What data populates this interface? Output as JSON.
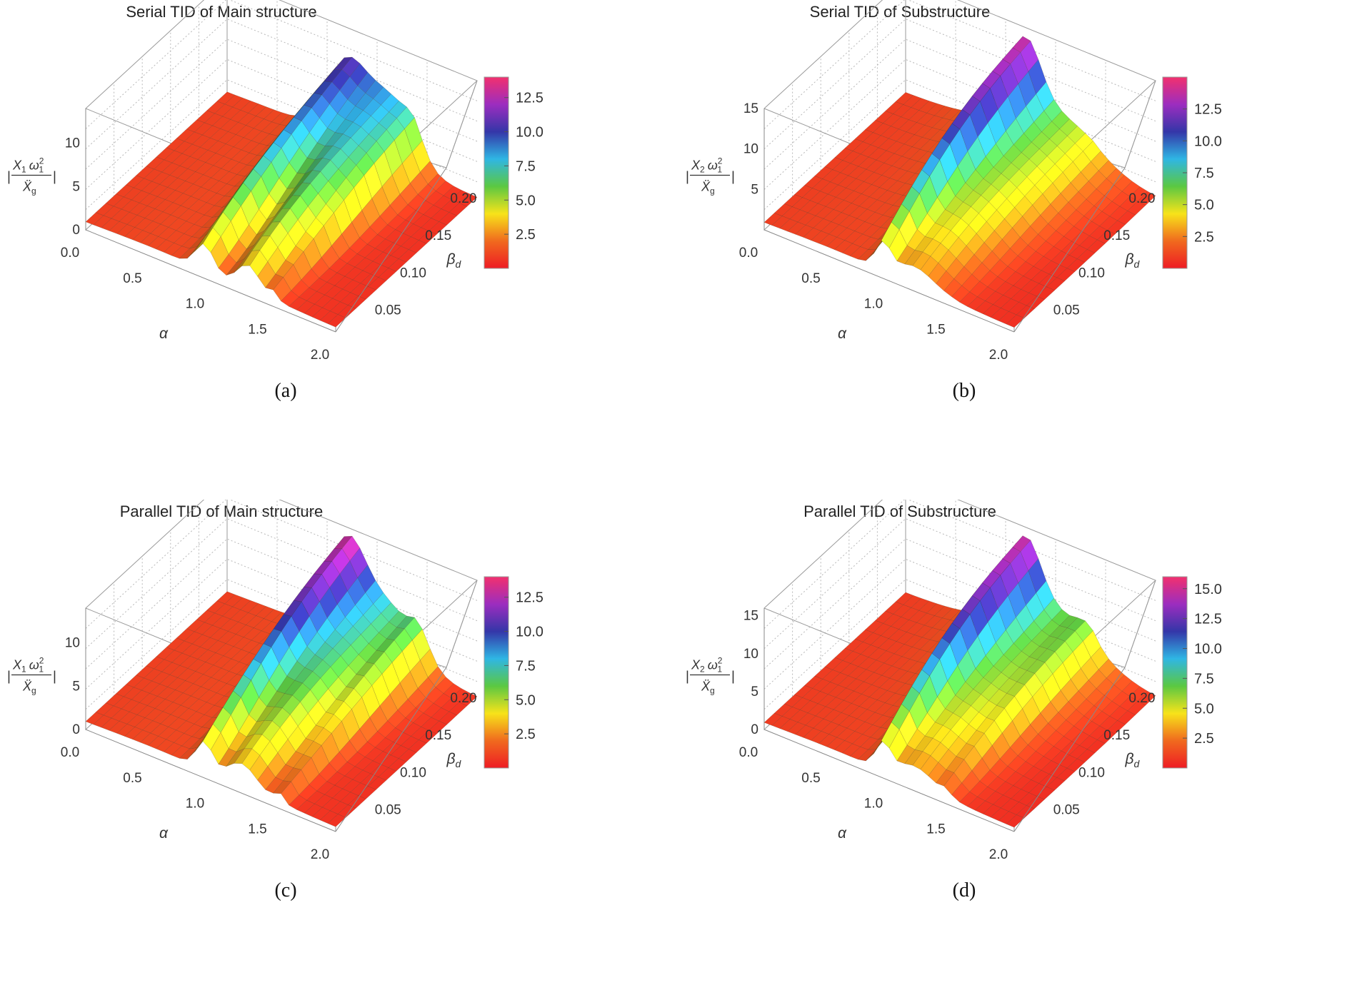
{
  "chart_data": [
    {
      "type": "surface",
      "title": "Serial TID of Main structure",
      "caption": "(a)",
      "xlabel": "α",
      "ylabel": "β",
      "ylabel_sub": "d",
      "zlabel": {
        "num_var": "X",
        "num_var_sub": "1",
        "omega": "ω",
        "omega_sub": "1",
        "omega_sup": "2",
        "den_var": "Ẍ",
        "den_var_sub": "g"
      },
      "x_ticks": [
        "0.0",
        "0.5",
        "1.0",
        "1.5",
        "2.0"
      ],
      "y_ticks": [
        "0.05",
        "0.10",
        "0.15",
        "0.20"
      ],
      "z_ticks": [
        "0",
        "5",
        "10"
      ],
      "xlim": [
        0,
        2.0
      ],
      "ylim": [
        0,
        0.22
      ],
      "zlim": [
        0,
        14
      ],
      "legend_ticks": [
        "2.5",
        "5.0",
        "7.5",
        "10.0",
        "12.5"
      ],
      "legend_range": [
        0,
        14
      ],
      "colorscale": [
        "#ee1c24",
        "#f06a1e",
        "#f7e31a",
        "#5bc842",
        "#2fb6e4",
        "#3436a8",
        "#9c2dbf",
        "#f2306e"
      ],
      "peaks": [
        {
          "alpha": 0.95,
          "z": 7.5,
          "width": 0.1,
          "trend": 0.6
        },
        {
          "alpha": 1.3,
          "z": 6.5,
          "width": 0.12,
          "trend": 0.3
        },
        {
          "alpha": 1.5,
          "z": 2.0,
          "width": 0.05,
          "trend": 0.1
        }
      ],
      "base": 1.0
    },
    {
      "type": "surface",
      "title": "Serial TID of Substructure",
      "caption": "(b)",
      "xlabel": "α",
      "ylabel": "β",
      "ylabel_sub": "d",
      "zlabel": {
        "num_var": "X",
        "num_var_sub": "2",
        "omega": "ω",
        "omega_sub": "1",
        "omega_sup": "2",
        "den_var": "Ẍ",
        "den_var_sub": "g"
      },
      "x_ticks": [
        "0.0",
        "0.5",
        "1.0",
        "1.5",
        "2.0"
      ],
      "y_ticks": [
        "0.05",
        "0.10",
        "0.15",
        "0.20"
      ],
      "z_ticks": [
        "5",
        "10",
        "15"
      ],
      "xlim": [
        0,
        2.0
      ],
      "ylim": [
        0,
        0.22
      ],
      "zlim": [
        0,
        15
      ],
      "legend_ticks": [
        "2.5",
        "5.0",
        "7.5",
        "10.0",
        "12.5"
      ],
      "legend_range": [
        0,
        15
      ],
      "colorscale": [
        "#ee1c24",
        "#f06a1e",
        "#f7e31a",
        "#5bc842",
        "#2fb6e4",
        "#3436a8",
        "#9c2dbf",
        "#f2306e"
      ],
      "peaks": [
        {
          "alpha": 0.95,
          "z": 8.0,
          "width": 0.08,
          "trend": 0.6
        },
        {
          "alpha": 1.2,
          "z": 5.0,
          "width": 0.22,
          "trend": 0.2
        }
      ],
      "base": 1.0
    },
    {
      "type": "surface",
      "title": "Parallel TID of Main structure",
      "caption": "(c)",
      "xlabel": "α",
      "ylabel": "β",
      "ylabel_sub": "d",
      "zlabel": {
        "num_var": "X",
        "num_var_sub": "1",
        "omega": "ω",
        "omega_sub": "1",
        "omega_sup": "2",
        "den_var": "Ẍ",
        "den_var_sub": "g"
      },
      "x_ticks": [
        "0.0",
        "0.5",
        "1.0",
        "1.5",
        "2.0"
      ],
      "y_ticks": [
        "0.05",
        "0.10",
        "0.15",
        "0.20"
      ],
      "z_ticks": [
        "0",
        "5",
        "10"
      ],
      "xlim": [
        0,
        2.0
      ],
      "ylim": [
        0,
        0.22
      ],
      "zlim": [
        0,
        14
      ],
      "legend_ticks": [
        "2.5",
        "5.0",
        "7.5",
        "10.0",
        "12.5"
      ],
      "legend_range": [
        0,
        14
      ],
      "colorscale": [
        "#ee1c24",
        "#f06a1e",
        "#f7e31a",
        "#5bc842",
        "#2fb6e4",
        "#3436a8",
        "#9c2dbf",
        "#f2306e"
      ],
      "peaks": [
        {
          "alpha": 0.95,
          "z": 8.0,
          "width": 0.09,
          "trend": 0.6
        },
        {
          "alpha": 1.25,
          "z": 6.0,
          "width": 0.16,
          "trend": 0.3
        },
        {
          "alpha": 1.55,
          "z": 2.5,
          "width": 0.05,
          "trend": 0.1
        }
      ],
      "base": 1.0
    },
    {
      "type": "surface",
      "title": "Parallel TID of Substructure",
      "caption": "(d)",
      "xlabel": "α",
      "ylabel": "β",
      "ylabel_sub": "d",
      "zlabel": {
        "num_var": "X",
        "num_var_sub": "2",
        "omega": "ω",
        "omega_sub": "1",
        "omega_sup": "2",
        "den_var": "Ẍ",
        "den_var_sub": "g"
      },
      "x_ticks": [
        "0.0",
        "0.5",
        "1.0",
        "1.5",
        "2.0"
      ],
      "y_ticks": [
        "0.05",
        "0.10",
        "0.15",
        "0.20"
      ],
      "z_ticks": [
        "0",
        "5",
        "10",
        "15"
      ],
      "xlim": [
        0,
        2.0
      ],
      "ylim": [
        0,
        0.22
      ],
      "zlim": [
        0,
        16
      ],
      "legend_ticks": [
        "2.5",
        "5.0",
        "7.5",
        "10.0",
        "12.5",
        "15.0"
      ],
      "legend_range": [
        0,
        16
      ],
      "colorscale": [
        "#ee1c24",
        "#f06a1e",
        "#f7e31a",
        "#5bc842",
        "#2fb6e4",
        "#3436a8",
        "#9c2dbf",
        "#f2306e"
      ],
      "peaks": [
        {
          "alpha": 0.95,
          "z": 8.5,
          "width": 0.08,
          "trend": 0.6
        },
        {
          "alpha": 1.2,
          "z": 5.5,
          "width": 0.22,
          "trend": 0.2
        },
        {
          "alpha": 1.45,
          "z": 1.5,
          "width": 0.05,
          "trend": 0.1
        }
      ],
      "base": 1.0
    }
  ]
}
